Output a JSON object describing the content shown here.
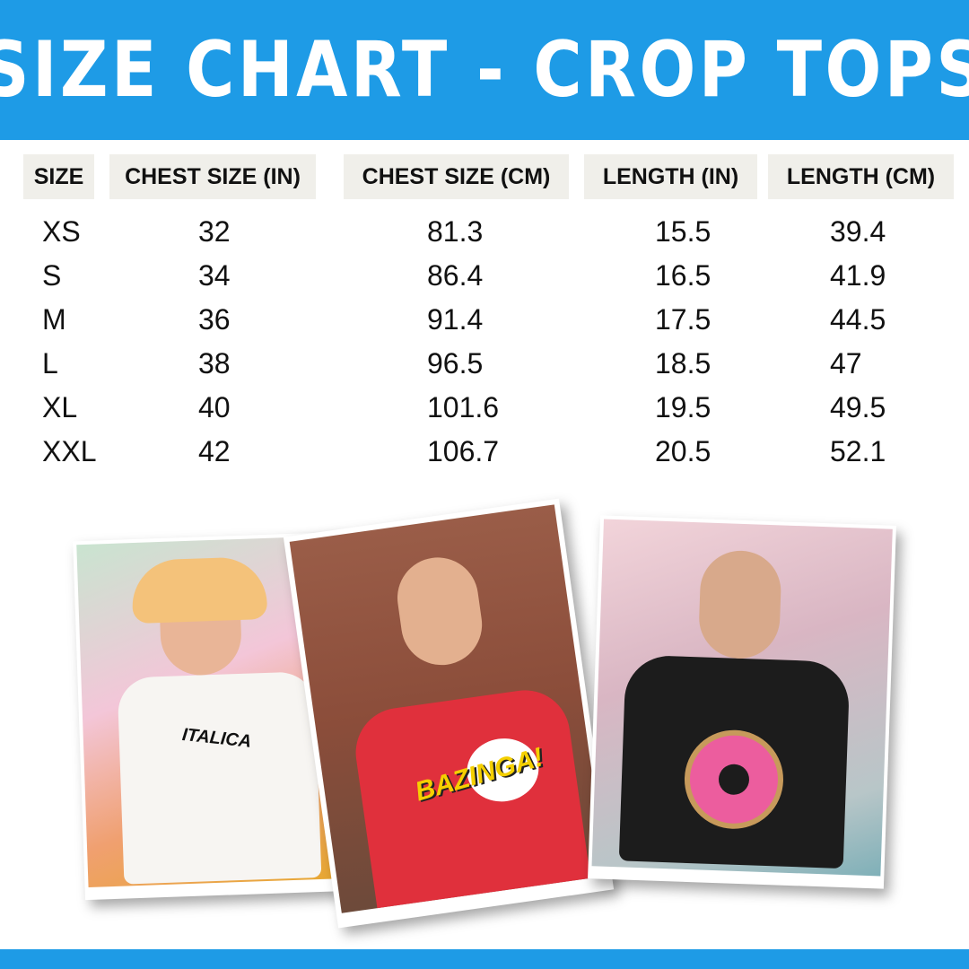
{
  "title": "SIZE CHART - CROP TOPS",
  "table": {
    "headers": [
      "SIZE",
      "CHEST SIZE (IN)",
      "CHEST SIZE (CM)",
      "LENGTH (IN)",
      "LENGTH (CM)"
    ],
    "rows": [
      [
        "XS",
        "32",
        "81.3",
        "15.5",
        "39.4"
      ],
      [
        "S",
        "34",
        "86.4",
        "16.5",
        "41.9"
      ],
      [
        "M",
        "36",
        "91.4",
        "17.5",
        "44.5"
      ],
      [
        "L",
        "38",
        "96.5",
        "18.5",
        "47"
      ],
      [
        "XL",
        "40",
        "101.6",
        "19.5",
        "49.5"
      ],
      [
        "XXL",
        "42",
        "106.7",
        "20.5",
        "52.1"
      ]
    ]
  },
  "photos": [
    {
      "shirt_print": "ITALICA",
      "shirt_color": "#f7f5f2"
    },
    {
      "shirt_print": "BAZINGA!",
      "shirt_color": "#e0303c"
    },
    {
      "shirt_print": "",
      "shirt_color": "#1c1c1c"
    }
  ],
  "colors": {
    "brand": "#1e9be6",
    "header_bg": "#f0efea"
  }
}
